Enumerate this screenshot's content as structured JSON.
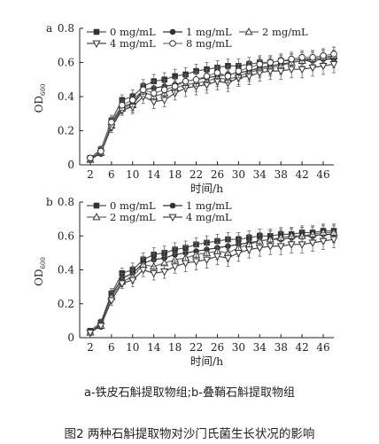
{
  "figure": {
    "subcaption": "a-铁皮石斛提取物组;b-叠鞘石斛提取物组",
    "caption": "图2 两种石斛提取物对沙门氏菌生长状况的影响"
  },
  "chart_data": [
    {
      "panel": "a",
      "type": "line",
      "xlabel": "时间/h",
      "ylabel": "OD",
      "ylabel_subscript": "600",
      "xlim": [
        0,
        48
      ],
      "ylim": [
        0,
        0.8
      ],
      "xticks": [
        2,
        6,
        10,
        14,
        18,
        22,
        26,
        30,
        34,
        38,
        42,
        46
      ],
      "yticks": [
        0,
        0.2,
        0.4,
        0.6,
        0.8
      ],
      "legend_position": "top-left",
      "x": [
        2,
        4,
        6,
        8,
        10,
        12,
        14,
        16,
        18,
        20,
        22,
        24,
        26,
        28,
        30,
        32,
        34,
        36,
        38,
        40,
        42,
        44,
        46,
        48
      ],
      "series": [
        {
          "name": "0 mg/mL",
          "marker": "square",
          "color": "#555555",
          "values": [
            0.04,
            0.09,
            0.26,
            0.38,
            0.4,
            0.46,
            0.49,
            0.5,
            0.52,
            0.53,
            0.55,
            0.56,
            0.57,
            0.58,
            0.58,
            0.59,
            0.6,
            0.6,
            0.61,
            0.61,
            0.62,
            0.62,
            0.63,
            0.63
          ],
          "errors": [
            0.01,
            0.02,
            0.03,
            0.03,
            0.04,
            0.04,
            0.04,
            0.04,
            0.04,
            0.04,
            0.04,
            0.04,
            0.04,
            0.04,
            0.04,
            0.04,
            0.04,
            0.04,
            0.04,
            0.04,
            0.04,
            0.04,
            0.04,
            0.04
          ]
        },
        {
          "name": "1 mg/mL",
          "marker": "circle",
          "color": "#333333",
          "values": [
            0.03,
            0.08,
            0.24,
            0.34,
            0.36,
            0.44,
            0.45,
            0.46,
            0.47,
            0.49,
            0.5,
            0.51,
            0.52,
            0.53,
            0.54,
            0.55,
            0.57,
            0.58,
            0.59,
            0.6,
            0.61,
            0.61,
            0.62,
            0.62
          ],
          "errors": [
            0.01,
            0.02,
            0.03,
            0.03,
            0.04,
            0.04,
            0.04,
            0.04,
            0.04,
            0.04,
            0.05,
            0.05,
            0.05,
            0.05,
            0.05,
            0.05,
            0.05,
            0.05,
            0.05,
            0.05,
            0.05,
            0.05,
            0.05,
            0.05
          ]
        },
        {
          "name": "2 mg/mL",
          "marker": "triangle-up",
          "color": "#666666",
          "values": [
            0.03,
            0.07,
            0.23,
            0.33,
            0.35,
            0.43,
            0.4,
            0.42,
            0.45,
            0.47,
            0.48,
            0.49,
            0.51,
            0.5,
            0.52,
            0.54,
            0.56,
            0.57,
            0.58,
            0.6,
            0.61,
            0.62,
            0.63,
            0.64
          ],
          "errors": [
            0.01,
            0.02,
            0.03,
            0.03,
            0.04,
            0.04,
            0.04,
            0.04,
            0.04,
            0.04,
            0.05,
            0.05,
            0.05,
            0.05,
            0.05,
            0.05,
            0.05,
            0.05,
            0.05,
            0.05,
            0.05,
            0.05,
            0.05,
            0.05
          ]
        },
        {
          "name": "4 mg/mL",
          "marker": "triangle-down",
          "color": "#444444",
          "values": [
            0.03,
            0.07,
            0.22,
            0.32,
            0.34,
            0.4,
            0.37,
            0.38,
            0.42,
            0.45,
            0.46,
            0.47,
            0.49,
            0.48,
            0.51,
            0.52,
            0.54,
            0.55,
            0.55,
            0.56,
            0.56,
            0.57,
            0.58,
            0.59
          ],
          "errors": [
            0.01,
            0.02,
            0.03,
            0.03,
            0.04,
            0.04,
            0.04,
            0.04,
            0.04,
            0.05,
            0.05,
            0.05,
            0.05,
            0.05,
            0.05,
            0.05,
            0.05,
            0.05,
            0.05,
            0.05,
            0.05,
            0.05,
            0.05,
            0.05
          ]
        },
        {
          "name": "8 mg/mL",
          "marker": "circle-open",
          "color": "#777777",
          "values": [
            0.04,
            0.08,
            0.25,
            0.35,
            0.38,
            0.44,
            0.42,
            0.44,
            0.46,
            0.49,
            0.5,
            0.52,
            0.54,
            0.52,
            0.55,
            0.57,
            0.59,
            0.6,
            0.61,
            0.62,
            0.63,
            0.63,
            0.64,
            0.65
          ],
          "errors": [
            0.01,
            0.02,
            0.03,
            0.03,
            0.04,
            0.04,
            0.04,
            0.04,
            0.04,
            0.04,
            0.04,
            0.04,
            0.04,
            0.04,
            0.04,
            0.04,
            0.04,
            0.04,
            0.04,
            0.04,
            0.04,
            0.04,
            0.04,
            0.04
          ]
        }
      ]
    },
    {
      "panel": "b",
      "type": "line",
      "xlabel": "时间/h",
      "ylabel": "OD",
      "ylabel_subscript": "600",
      "xlim": [
        0,
        48
      ],
      "ylim": [
        0,
        0.8
      ],
      "xticks": [
        2,
        6,
        10,
        14,
        18,
        22,
        26,
        30,
        34,
        38,
        42,
        46
      ],
      "yticks": [
        0,
        0.2,
        0.4,
        0.6,
        0.8
      ],
      "legend_position": "top-left",
      "x": [
        2,
        4,
        6,
        8,
        10,
        12,
        14,
        16,
        18,
        20,
        22,
        24,
        26,
        28,
        30,
        32,
        34,
        36,
        38,
        40,
        42,
        44,
        46,
        48
      ],
      "series": [
        {
          "name": "0 mg/mL",
          "marker": "square",
          "color": "#555555",
          "values": [
            0.04,
            0.09,
            0.26,
            0.38,
            0.4,
            0.46,
            0.49,
            0.5,
            0.52,
            0.53,
            0.55,
            0.56,
            0.57,
            0.58,
            0.58,
            0.59,
            0.6,
            0.6,
            0.61,
            0.61,
            0.62,
            0.62,
            0.63,
            0.63
          ],
          "errors": [
            0.01,
            0.02,
            0.03,
            0.03,
            0.04,
            0.04,
            0.04,
            0.04,
            0.04,
            0.04,
            0.04,
            0.04,
            0.04,
            0.04,
            0.04,
            0.04,
            0.04,
            0.04,
            0.04,
            0.04,
            0.04,
            0.04,
            0.04,
            0.04
          ]
        },
        {
          "name": "1 mg/mL",
          "marker": "circle",
          "color": "#333333",
          "values": [
            0.03,
            0.08,
            0.25,
            0.35,
            0.38,
            0.44,
            0.46,
            0.47,
            0.49,
            0.5,
            0.51,
            0.52,
            0.53,
            0.54,
            0.55,
            0.56,
            0.57,
            0.58,
            0.58,
            0.59,
            0.6,
            0.6,
            0.61,
            0.61
          ],
          "errors": [
            0.01,
            0.02,
            0.03,
            0.03,
            0.04,
            0.04,
            0.04,
            0.04,
            0.04,
            0.04,
            0.05,
            0.05,
            0.05,
            0.05,
            0.05,
            0.05,
            0.05,
            0.05,
            0.05,
            0.05,
            0.05,
            0.05,
            0.05,
            0.05
          ]
        },
        {
          "name": "2 mg/mL",
          "marker": "triangle-up",
          "color": "#666666",
          "values": [
            0.03,
            0.07,
            0.24,
            0.33,
            0.36,
            0.43,
            0.42,
            0.44,
            0.46,
            0.47,
            0.49,
            0.5,
            0.51,
            0.5,
            0.53,
            0.55,
            0.57,
            0.58,
            0.59,
            0.6,
            0.6,
            0.61,
            0.62,
            0.62
          ],
          "errors": [
            0.01,
            0.02,
            0.03,
            0.03,
            0.04,
            0.04,
            0.04,
            0.04,
            0.04,
            0.04,
            0.05,
            0.05,
            0.05,
            0.05,
            0.05,
            0.05,
            0.05,
            0.05,
            0.05,
            0.05,
            0.05,
            0.05,
            0.05,
            0.05
          ]
        },
        {
          "name": "4 mg/mL",
          "marker": "triangle-down",
          "color": "#444444",
          "values": [
            0.03,
            0.07,
            0.22,
            0.32,
            0.34,
            0.4,
            0.38,
            0.39,
            0.42,
            0.44,
            0.45,
            0.46,
            0.48,
            0.47,
            0.5,
            0.52,
            0.53,
            0.54,
            0.54,
            0.55,
            0.55,
            0.56,
            0.57,
            0.58
          ],
          "errors": [
            0.01,
            0.02,
            0.03,
            0.03,
            0.04,
            0.04,
            0.04,
            0.04,
            0.04,
            0.05,
            0.05,
            0.05,
            0.05,
            0.05,
            0.05,
            0.05,
            0.05,
            0.05,
            0.05,
            0.05,
            0.05,
            0.05,
            0.05,
            0.05
          ]
        }
      ]
    }
  ]
}
